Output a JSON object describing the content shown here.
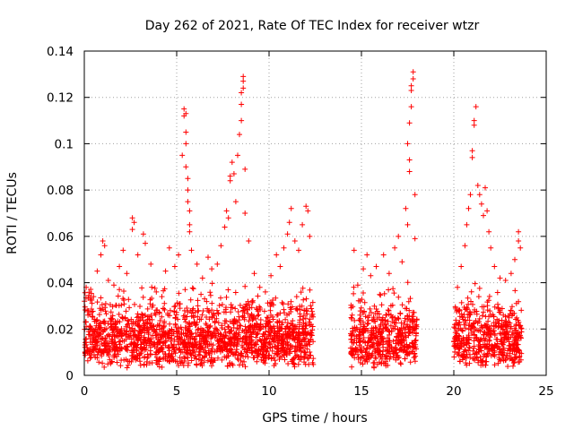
{
  "chart_data": {
    "type": "scatter",
    "title": "Day 262 of 2021, Rate Of TEC Index for receiver wtzr",
    "xlabel": "GPS time / hours",
    "ylabel": "ROTI / TECUs",
    "xlim": [
      0,
      25
    ],
    "ylim": [
      0,
      0.14
    ],
    "xticks": [
      0,
      5,
      10,
      15,
      20,
      25
    ],
    "xtick_labels": [
      "0",
      "5",
      "10",
      "15",
      "20",
      "25"
    ],
    "yticks": [
      0,
      0.02,
      0.04,
      0.06,
      0.08,
      0.1,
      0.12,
      0.14
    ],
    "ytick_labels": [
      "0",
      "0.02",
      "0.04",
      "0.06",
      "0.08",
      "0.1",
      "0.12",
      "0.14"
    ],
    "grid": true,
    "marker": "+",
    "color": "#ff0000",
    "series": [
      {
        "name": "ROTI",
        "points": [
          [
            0.1,
            0.038
          ],
          [
            0.2,
            0.026
          ],
          [
            0.3,
            0.021
          ],
          [
            0.5,
            0.034
          ],
          [
            0.7,
            0.045
          ],
          [
            0.9,
            0.052
          ],
          [
            1.0,
            0.058
          ],
          [
            1.1,
            0.056
          ],
          [
            1.3,
            0.041
          ],
          [
            1.6,
            0.039
          ],
          [
            1.9,
            0.047
          ],
          [
            2.1,
            0.054
          ],
          [
            2.3,
            0.044
          ],
          [
            2.6,
            0.068
          ],
          [
            2.6,
            0.063
          ],
          [
            2.7,
            0.066
          ],
          [
            2.9,
            0.052
          ],
          [
            3.2,
            0.061
          ],
          [
            3.3,
            0.057
          ],
          [
            3.6,
            0.048
          ],
          [
            3.9,
            0.036
          ],
          [
            4.2,
            0.034
          ],
          [
            4.4,
            0.045
          ],
          [
            4.6,
            0.055
          ],
          [
            4.9,
            0.047
          ],
          [
            5.1,
            0.052
          ],
          [
            5.3,
            0.095
          ],
          [
            5.4,
            0.115
          ],
          [
            5.4,
            0.112
          ],
          [
            5.5,
            0.113
          ],
          [
            5.5,
            0.105
          ],
          [
            5.5,
            0.1
          ],
          [
            5.5,
            0.09
          ],
          [
            5.6,
            0.085
          ],
          [
            5.6,
            0.08
          ],
          [
            5.6,
            0.075
          ],
          [
            5.7,
            0.071
          ],
          [
            5.7,
            0.065
          ],
          [
            5.7,
            0.062
          ],
          [
            5.8,
            0.054
          ],
          [
            6.1,
            0.048
          ],
          [
            6.4,
            0.042
          ],
          [
            6.7,
            0.051
          ],
          [
            6.9,
            0.046
          ],
          [
            7.2,
            0.048
          ],
          [
            7.4,
            0.056
          ],
          [
            7.6,
            0.064
          ],
          [
            7.7,
            0.071
          ],
          [
            7.8,
            0.068
          ],
          [
            7.9,
            0.084
          ],
          [
            7.9,
            0.086
          ],
          [
            8.0,
            0.092
          ],
          [
            8.1,
            0.087
          ],
          [
            8.2,
            0.075
          ],
          [
            8.3,
            0.095
          ],
          [
            8.4,
            0.104
          ],
          [
            8.5,
            0.11
          ],
          [
            8.5,
            0.117
          ],
          [
            8.5,
            0.122
          ],
          [
            8.6,
            0.124
          ],
          [
            8.6,
            0.127
          ],
          [
            8.6,
            0.129
          ],
          [
            8.7,
            0.089
          ],
          [
            8.7,
            0.07
          ],
          [
            8.9,
            0.058
          ],
          [
            9.2,
            0.044
          ],
          [
            9.5,
            0.038
          ],
          [
            9.8,
            0.036
          ],
          [
            10.1,
            0.043
          ],
          [
            10.4,
            0.052
          ],
          [
            10.6,
            0.047
          ],
          [
            10.8,
            0.055
          ],
          [
            11.0,
            0.061
          ],
          [
            11.1,
            0.066
          ],
          [
            11.2,
            0.072
          ],
          [
            11.4,
            0.058
          ],
          [
            11.6,
            0.054
          ],
          [
            11.8,
            0.065
          ],
          [
            12.0,
            0.073
          ],
          [
            12.1,
            0.071
          ],
          [
            12.2,
            0.06
          ],
          [
            14.6,
            0.054
          ],
          [
            14.8,
            0.039
          ],
          [
            15.1,
            0.046
          ],
          [
            15.3,
            0.052
          ],
          [
            15.5,
            0.043
          ],
          [
            15.8,
            0.047
          ],
          [
            16.2,
            0.052
          ],
          [
            16.5,
            0.044
          ],
          [
            16.8,
            0.055
          ],
          [
            17.0,
            0.06
          ],
          [
            17.2,
            0.049
          ],
          [
            17.4,
            0.072
          ],
          [
            17.5,
            0.065
          ],
          [
            17.5,
            0.1
          ],
          [
            17.6,
            0.093
          ],
          [
            17.6,
            0.088
          ],
          [
            17.6,
            0.109
          ],
          [
            17.7,
            0.116
          ],
          [
            17.7,
            0.123
          ],
          [
            17.7,
            0.125
          ],
          [
            17.8,
            0.128
          ],
          [
            17.8,
            0.131
          ],
          [
            17.9,
            0.078
          ],
          [
            17.9,
            0.059
          ],
          [
            20.2,
            0.038
          ],
          [
            20.4,
            0.047
          ],
          [
            20.6,
            0.056
          ],
          [
            20.7,
            0.065
          ],
          [
            20.8,
            0.072
          ],
          [
            20.9,
            0.078
          ],
          [
            21.0,
            0.094
          ],
          [
            21.0,
            0.097
          ],
          [
            21.1,
            0.108
          ],
          [
            21.1,
            0.11
          ],
          [
            21.2,
            0.116
          ],
          [
            21.3,
            0.082
          ],
          [
            21.4,
            0.078
          ],
          [
            21.5,
            0.074
          ],
          [
            21.6,
            0.069
          ],
          [
            21.7,
            0.081
          ],
          [
            21.8,
            0.071
          ],
          [
            21.9,
            0.062
          ],
          [
            22.0,
            0.055
          ],
          [
            22.2,
            0.047
          ],
          [
            22.5,
            0.042
          ],
          [
            22.8,
            0.041
          ],
          [
            23.1,
            0.044
          ],
          [
            23.3,
            0.05
          ],
          [
            23.5,
            0.058
          ],
          [
            23.5,
            0.062
          ],
          [
            23.6,
            0.055
          ]
        ],
        "dense_band": {
          "segments": [
            [
              0.0,
              12.4
            ],
            [
              14.4,
              18.0
            ],
            [
              20.0,
              23.7
            ]
          ],
          "median": 0.014,
          "range": [
            0.003,
            0.035
          ]
        }
      }
    ]
  }
}
